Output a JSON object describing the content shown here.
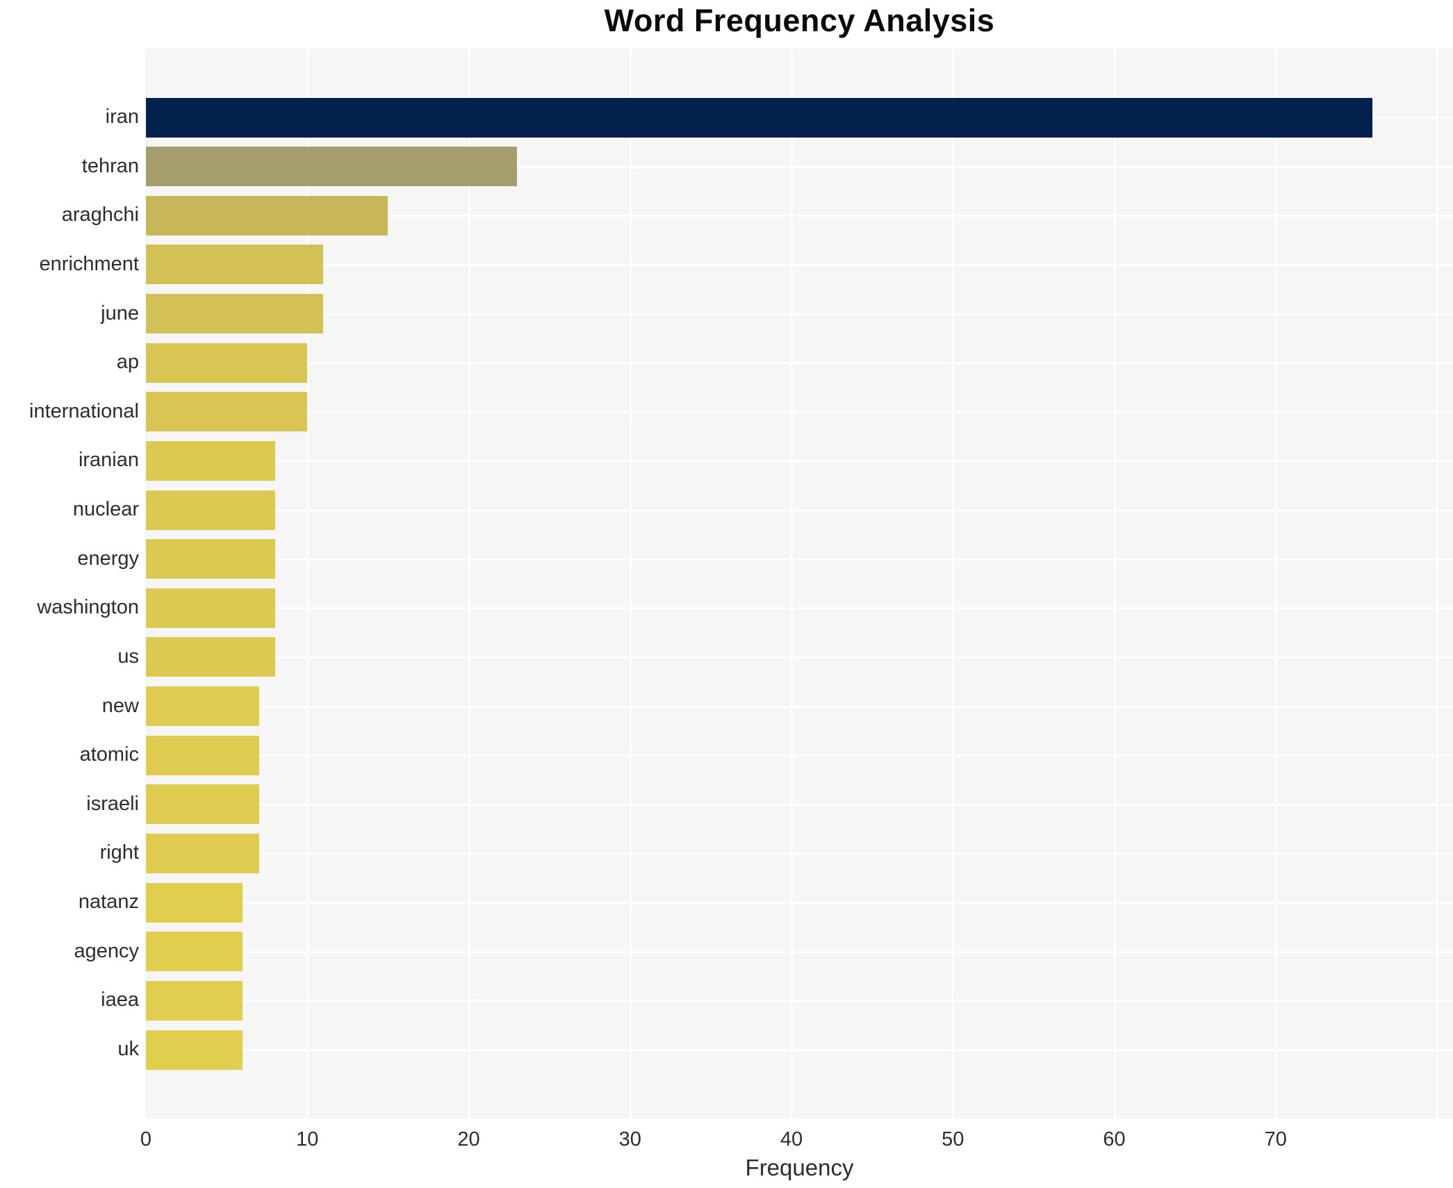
{
  "title": "Word Frequency Analysis",
  "chart_data": {
    "type": "bar",
    "orientation": "horizontal",
    "title": "Word Frequency Analysis",
    "xlabel": "Frequency",
    "ylabel": "",
    "legend": "none",
    "grid": "white major gridlines on light gray panel",
    "panel_bg": "#f6f6f7",
    "gridline_color": "#ffffff",
    "xlim": [
      0,
      81
    ],
    "x_ticks": [
      0,
      10,
      20,
      30,
      40,
      50,
      60,
      70
    ],
    "categories": [
      "iran",
      "tehran",
      "araghchi",
      "enrichment",
      "june",
      "ap",
      "international",
      "iranian",
      "nuclear",
      "energy",
      "washington",
      "us",
      "new",
      "atomic",
      "israeli",
      "right",
      "natanz",
      "agency",
      "iaea",
      "uk"
    ],
    "values": [
      76,
      23,
      15,
      11,
      11,
      10,
      10,
      8,
      8,
      8,
      8,
      8,
      7,
      7,
      7,
      7,
      6,
      6,
      6,
      6
    ],
    "bar_colors": [
      "#03214d",
      "#a69e6d",
      "#c8b65b",
      "#d3c158",
      "#d3c158",
      "#d8c554",
      "#d8c554",
      "#dcc952",
      "#dcc952",
      "#dcc952",
      "#dcc952",
      "#dcc952",
      "#dfcb50",
      "#dfcb50",
      "#dfcb50",
      "#dfcb50",
      "#e2ce4e",
      "#e2ce4e",
      "#e2ce4e",
      "#e2ce4e"
    ]
  }
}
